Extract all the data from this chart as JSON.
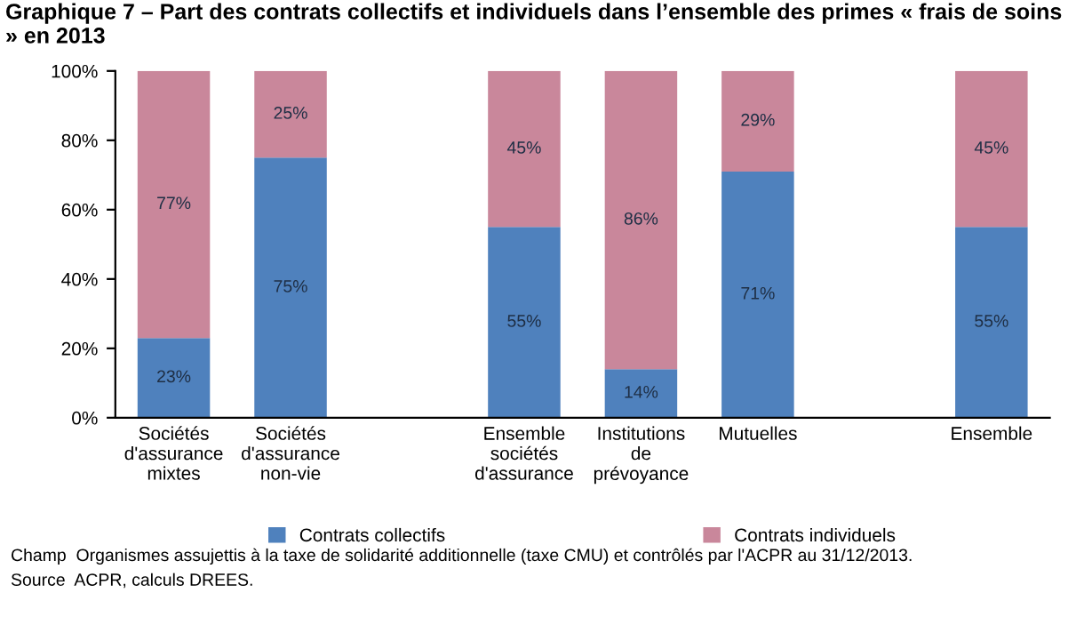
{
  "chart_data": {
    "type": "bar",
    "stacked": true,
    "title": "Graphique 7 – Part des contrats collectifs et individuels dans l’ensemble des primes « frais de soins » en 2013",
    "categories": [
      "Sociétés\nd'assurance\nmixtes",
      "Sociétés\nd'assurance\nnon-vie",
      null,
      "Ensemble\nsociétés\nd'assurance",
      "Institutions\nde\nprévoyance",
      "Mutuelles",
      null,
      "Ensemble"
    ],
    "series": [
      {
        "name": "Contrats collectifs",
        "color": "#4f81bd",
        "values": [
          23,
          75,
          null,
          55,
          14,
          71,
          null,
          55
        ],
        "value_labels": [
          "23%",
          "75%",
          null,
          "55%",
          "14%",
          "71%",
          null,
          "55%"
        ]
      },
      {
        "name": "Contrats individuels",
        "color": "#c9879b",
        "values": [
          77,
          25,
          null,
          45,
          86,
          29,
          null,
          45
        ],
        "value_labels": [
          "77%",
          "25%",
          null,
          "45%",
          "86%",
          "29%",
          null,
          "45%"
        ]
      }
    ],
    "ylim": [
      0,
      100
    ],
    "yticks": [
      {
        "value": 0,
        "label": "0%"
      },
      {
        "value": 20,
        "label": "20%"
      },
      {
        "value": 40,
        "label": "40%"
      },
      {
        "value": 60,
        "label": "60%"
      },
      {
        "value": 80,
        "label": "80%"
      },
      {
        "value": 100,
        "label": "100%"
      }
    ],
    "legend": "bottom",
    "annotations": [
      "Champ  Organismes assujettis à la taxe de solidarité additionnelle (taxe CMU) et contrôlés par l'ACPR au 31/12/2013.",
      "Source  ACPR, calculs DREES."
    ]
  }
}
